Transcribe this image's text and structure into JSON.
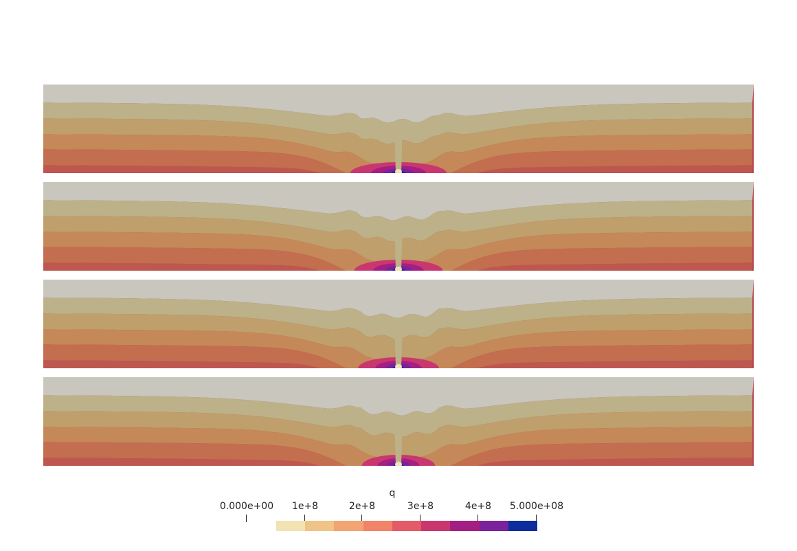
{
  "colormap": {
    "title": "q",
    "min_label": "0.000e+00",
    "max_label": "5.000e+08",
    "ticks": [
      "1e+8",
      "2e+8",
      "3e+8",
      "4e+8"
    ],
    "bins": [
      "#f2e3b3",
      "#f0c386",
      "#f2a472",
      "#f18468",
      "#e45b68",
      "#c9376f",
      "#a41f83",
      "#7a219b",
      "#0e2d9c"
    ]
  },
  "panels": [
    {
      "band_colors": [
        "#c8c6bd",
        "#bcb188",
        "#bf9f6b",
        "#c58858",
        "#c36e4f",
        "#bd574f",
        "#b8444f"
      ]
    },
    {
      "band_colors": [
        "#c8c6bd",
        "#bcb188",
        "#bf9f6b",
        "#c58858",
        "#c36e4f",
        "#bd574f",
        "#b8444f"
      ]
    },
    {
      "band_colors": [
        "#c8c6bd",
        "#bcb188",
        "#bf9f6b",
        "#c58858",
        "#c36e4f",
        "#bd574f",
        "#b8444f"
      ]
    },
    {
      "band_colors": [
        "#c8c6bd",
        "#bcb188",
        "#bf9f6b",
        "#c58858",
        "#c36e4f",
        "#bd574f",
        "#b8444f"
      ]
    }
  ]
}
